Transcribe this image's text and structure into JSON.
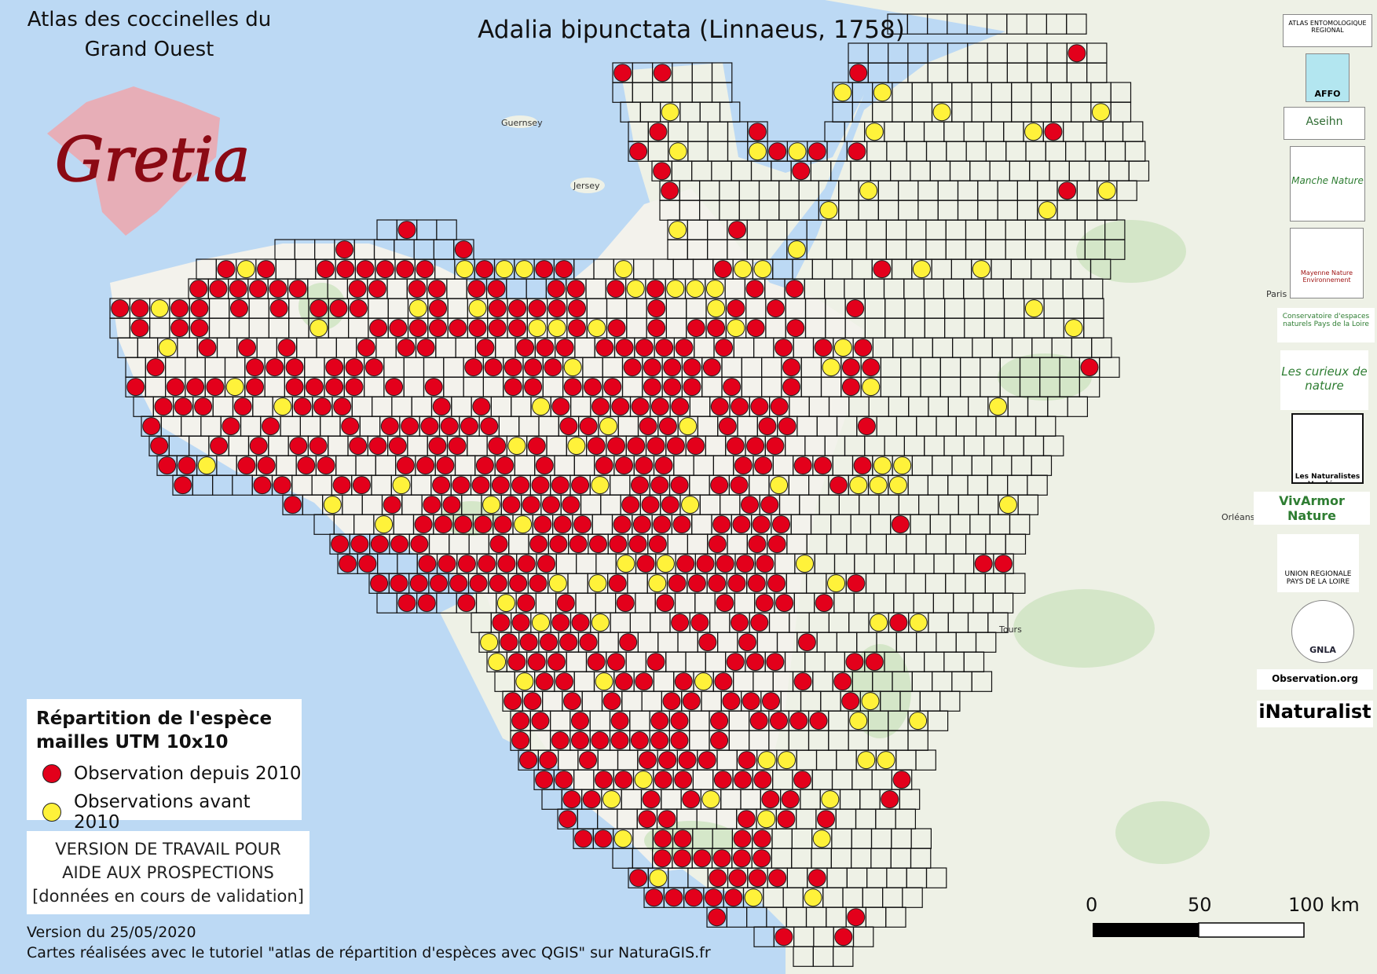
{
  "header": {
    "atlas_title_line1": "Atlas des coccinelles du",
    "atlas_title_line2": "Grand Ouest",
    "species_title": "Adalia bipunctata (Linnaeus, 1758)",
    "gretia_logo_text": "Gretia"
  },
  "legend": {
    "heading_line1": "Répartition de l'espèce",
    "heading_line2": "mailles UTM 10x10",
    "item_recent": "Observation depuis 2010",
    "item_old": "Observations avant 2010",
    "color_recent": "#e3001b",
    "color_old": "#fff23a"
  },
  "notice": {
    "line1": "VERSION DE TRAVAIL POUR",
    "line2": "AIDE AUX PROSPECTIONS",
    "line3": "[données en cours de validation]"
  },
  "footer": {
    "version": "Version du 25/05/2020",
    "credits": "Cartes réalisées avec le tutoriel \"atlas de répartition d'espèces avec QGIS\" sur NaturaGIS.fr"
  },
  "scalebar": {
    "label_0": "0",
    "label_50": "50",
    "label_100": "100 km"
  },
  "partners": {
    "aer": "ATLAS ENTOMOLOGIQUE REGIONAL",
    "affo": "AFFO",
    "aseihn": "Aseihn",
    "manche_nature": "Manche Nature",
    "mayenne": "Mayenne Nature Environnement",
    "cen": "Conservatoire d'espaces naturels Pays de la Loire",
    "curieux": "Les curieux de nature",
    "naturalistes": "Les Naturalistes Vendéens",
    "vivarmor": "VivArmor Nature",
    "urcpie": "UNION REGIONALE PAYS DE LA LOIRE",
    "gnla": "GNLA",
    "observation": "Observation.org",
    "inaturalist": "iNaturalist"
  },
  "map_labels": {
    "guernsey": "Guernsey",
    "jersey": "Jersey",
    "paris": "Paris",
    "tours": "Tours",
    "orleans": "Orléans"
  }
}
